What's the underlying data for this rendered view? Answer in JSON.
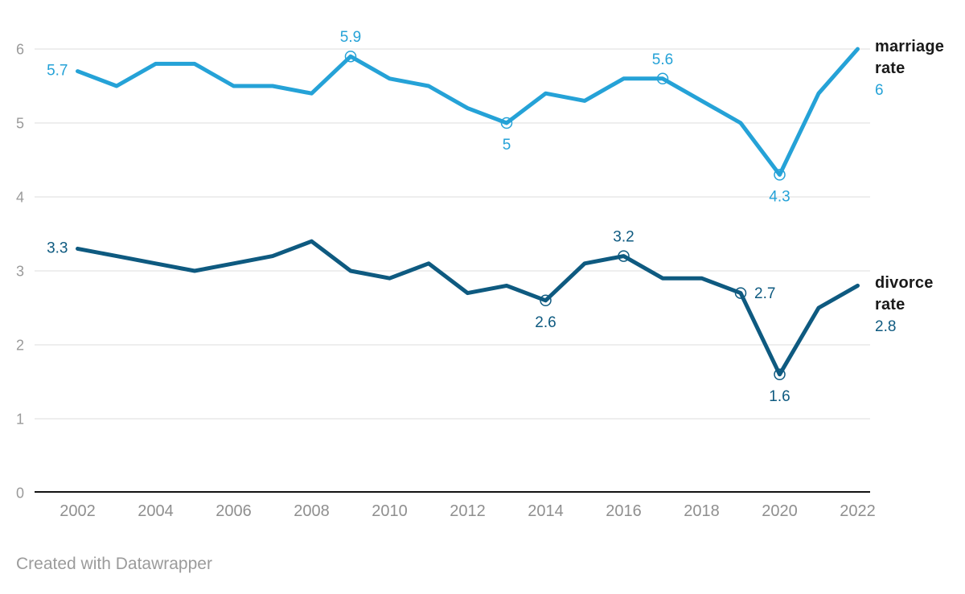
{
  "chart_data": {
    "type": "line",
    "years": [
      2002,
      2003,
      2004,
      2005,
      2006,
      2007,
      2008,
      2009,
      2010,
      2011,
      2012,
      2013,
      2014,
      2015,
      2016,
      2017,
      2018,
      2019,
      2020,
      2021,
      2022
    ],
    "x_ticks": [
      2002,
      2004,
      2006,
      2008,
      2010,
      2012,
      2014,
      2016,
      2018,
      2020,
      2022
    ],
    "y_ticks": [
      0,
      1,
      2,
      3,
      4,
      5,
      6
    ],
    "ylim": [
      0,
      6
    ],
    "grid": true,
    "grid_color": "#dcdcdc",
    "axis_color": "#121212",
    "legend_position": "right",
    "title": "",
    "series": [
      {
        "name": "marriage rate",
        "color": "#25a2d7",
        "values": [
          5.7,
          5.5,
          5.8,
          5.8,
          5.5,
          5.5,
          5.4,
          5.9,
          5.6,
          5.5,
          5.2,
          5.0,
          5.4,
          5.3,
          5.6,
          5.6,
          5.3,
          5.0,
          4.3,
          5.4,
          6.0
        ],
        "point_labels": [
          {
            "year": 2002,
            "text": "5.7",
            "position": "left",
            "marker": false
          },
          {
            "year": 2009,
            "text": "5.9",
            "position": "above",
            "marker": true
          },
          {
            "year": 2013,
            "text": "5",
            "position": "below",
            "marker": true
          },
          {
            "year": 2017,
            "text": "5.6",
            "position": "above",
            "marker": true
          },
          {
            "year": 2020,
            "text": "4.3",
            "position": "below",
            "marker": true
          }
        ],
        "legend": {
          "line1": "marriage",
          "line2": "rate",
          "value": "6"
        }
      },
      {
        "name": "divorce rate",
        "color": "#0e5a80",
        "values": [
          3.3,
          3.2,
          3.1,
          3.0,
          3.1,
          3.2,
          3.4,
          3.0,
          2.9,
          3.1,
          2.7,
          2.8,
          2.6,
          3.1,
          3.2,
          2.9,
          2.9,
          2.7,
          1.6,
          2.5,
          2.8
        ],
        "point_labels": [
          {
            "year": 2002,
            "text": "3.3",
            "position": "left",
            "marker": false
          },
          {
            "year": 2014,
            "text": "2.6",
            "position": "below",
            "marker": true
          },
          {
            "year": 2016,
            "text": "3.2",
            "position": "above",
            "marker": true
          },
          {
            "year": 2019,
            "text": "2.7",
            "position": "right",
            "marker": true
          },
          {
            "year": 2020,
            "text": "1.6",
            "position": "below",
            "marker": true
          }
        ],
        "legend": {
          "line1": "divorce",
          "line2": "rate",
          "value": "2.8"
        }
      }
    ]
  },
  "footer": {
    "credit": "Created with Datawrapper"
  }
}
